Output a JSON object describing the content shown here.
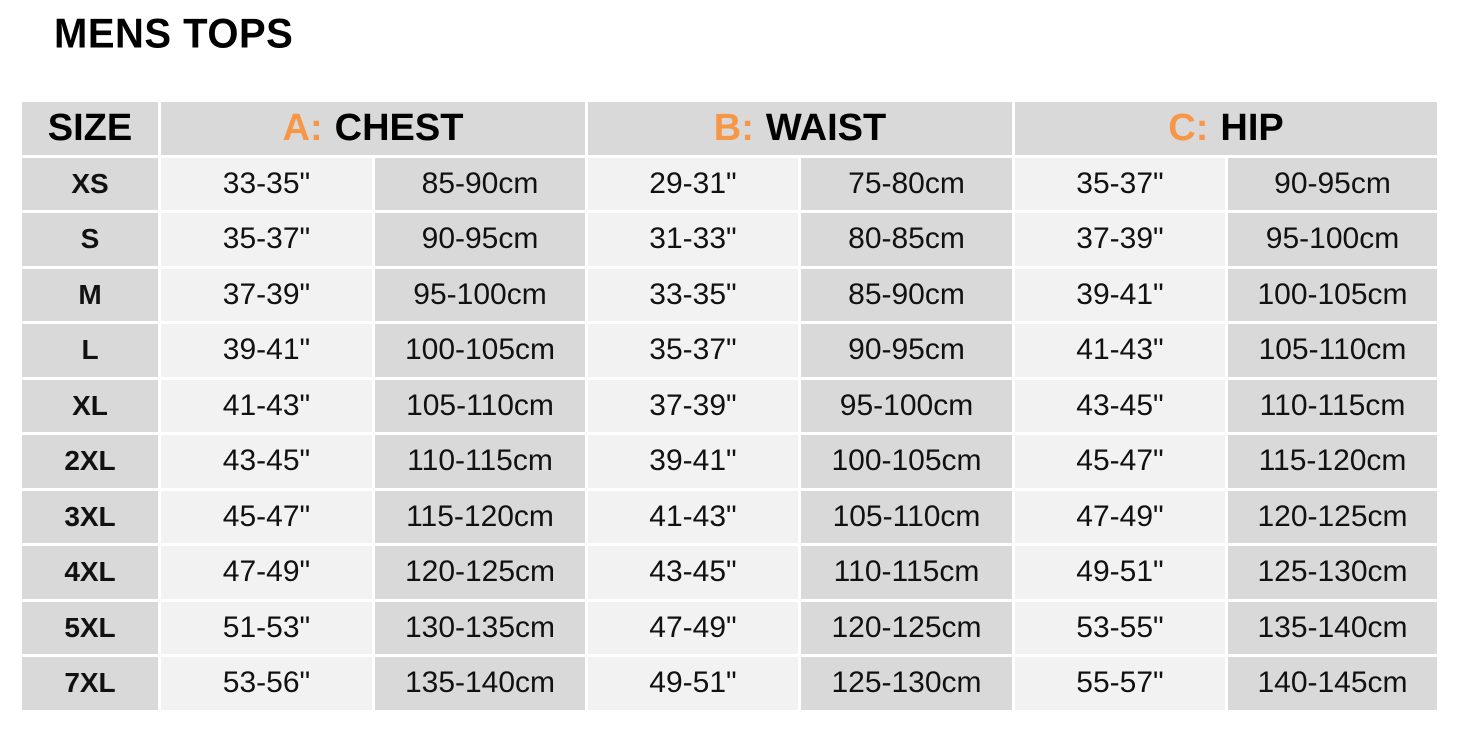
{
  "title": "MENS TOPS",
  "header": {
    "size": "SIZE",
    "groups": [
      {
        "letter": "A:",
        "name": "CHEST"
      },
      {
        "letter": "B:",
        "name": "WAIST"
      },
      {
        "letter": "C:",
        "name": "HIP"
      }
    ]
  },
  "colors": {
    "accent": "#f79646",
    "dark_cell": "#d9d9d9",
    "light_cell": "#f2f2f2"
  },
  "rows": [
    {
      "size": "XS",
      "chest_in": "33-35\"",
      "chest_cm": "85-90cm",
      "waist_in": "29-31\"",
      "waist_cm": "75-80cm",
      "hip_in": "35-37\"",
      "hip_cm": "90-95cm"
    },
    {
      "size": "S",
      "chest_in": "35-37\"",
      "chest_cm": "90-95cm",
      "waist_in": "31-33\"",
      "waist_cm": "80-85cm",
      "hip_in": "37-39\"",
      "hip_cm": "95-100cm"
    },
    {
      "size": "M",
      "chest_in": "37-39\"",
      "chest_cm": "95-100cm",
      "waist_in": "33-35\"",
      "waist_cm": "85-90cm",
      "hip_in": "39-41\"",
      "hip_cm": "100-105cm"
    },
    {
      "size": "L",
      "chest_in": "39-41\"",
      "chest_cm": "100-105cm",
      "waist_in": "35-37\"",
      "waist_cm": "90-95cm",
      "hip_in": "41-43\"",
      "hip_cm": "105-110cm"
    },
    {
      "size": "XL",
      "chest_in": "41-43\"",
      "chest_cm": "105-110cm",
      "waist_in": "37-39\"",
      "waist_cm": "95-100cm",
      "hip_in": "43-45\"",
      "hip_cm": "110-115cm"
    },
    {
      "size": "2XL",
      "chest_in": "43-45\"",
      "chest_cm": "110-115cm",
      "waist_in": "39-41\"",
      "waist_cm": "100-105cm",
      "hip_in": "45-47\"",
      "hip_cm": "115-120cm"
    },
    {
      "size": "3XL",
      "chest_in": "45-47\"",
      "chest_cm": "115-120cm",
      "waist_in": "41-43\"",
      "waist_cm": "105-110cm",
      "hip_in": "47-49\"",
      "hip_cm": "120-125cm"
    },
    {
      "size": "4XL",
      "chest_in": "47-49\"",
      "chest_cm": "120-125cm",
      "waist_in": "43-45\"",
      "waist_cm": "110-115cm",
      "hip_in": "49-51\"",
      "hip_cm": "125-130cm"
    },
    {
      "size": "5XL",
      "chest_in": "51-53\"",
      "chest_cm": "130-135cm",
      "waist_in": "47-49\"",
      "waist_cm": "120-125cm",
      "hip_in": "53-55\"",
      "hip_cm": "135-140cm"
    },
    {
      "size": "7XL",
      "chest_in": "53-56\"",
      "chest_cm": "135-140cm",
      "waist_in": "49-51\"",
      "waist_cm": "125-130cm",
      "hip_in": "55-57\"",
      "hip_cm": "140-145cm"
    }
  ]
}
